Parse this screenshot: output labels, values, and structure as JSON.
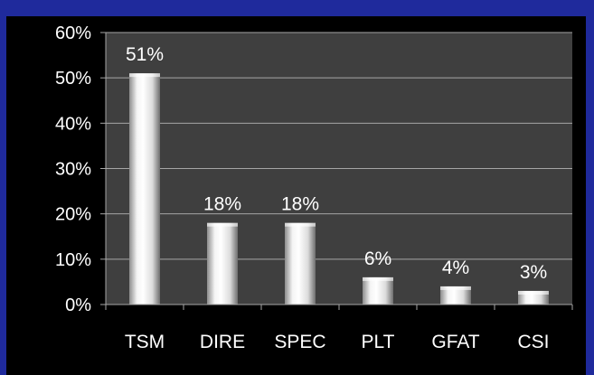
{
  "chart_data": {
    "type": "bar",
    "categories": [
      "TSM",
      "DIRE",
      "SPEC",
      "PLT",
      "GFAT",
      "CSI"
    ],
    "values": [
      51,
      18,
      18,
      6,
      4,
      3
    ],
    "data_labels": [
      "51%",
      "18%",
      "18%",
      "6%",
      "4%",
      "3%"
    ],
    "title": "",
    "xlabel": "",
    "ylabel": "",
    "ylim": [
      0,
      60
    ],
    "yticks": [
      0,
      10,
      20,
      30,
      40,
      50,
      60
    ],
    "ytick_labels": [
      "0%",
      "10%",
      "20%",
      "30%",
      "40%",
      "50%",
      "60%"
    ],
    "grid": true,
    "legend": "none",
    "colors": {
      "page_background": "#1f2a9c",
      "chart_background": "#000000",
      "plot_background": "#3f3f3f",
      "gridline": "#a6a6a6",
      "bar_light": "#ffffff",
      "bar_dark": "#7a7a7a",
      "text": "#ffffff"
    }
  }
}
